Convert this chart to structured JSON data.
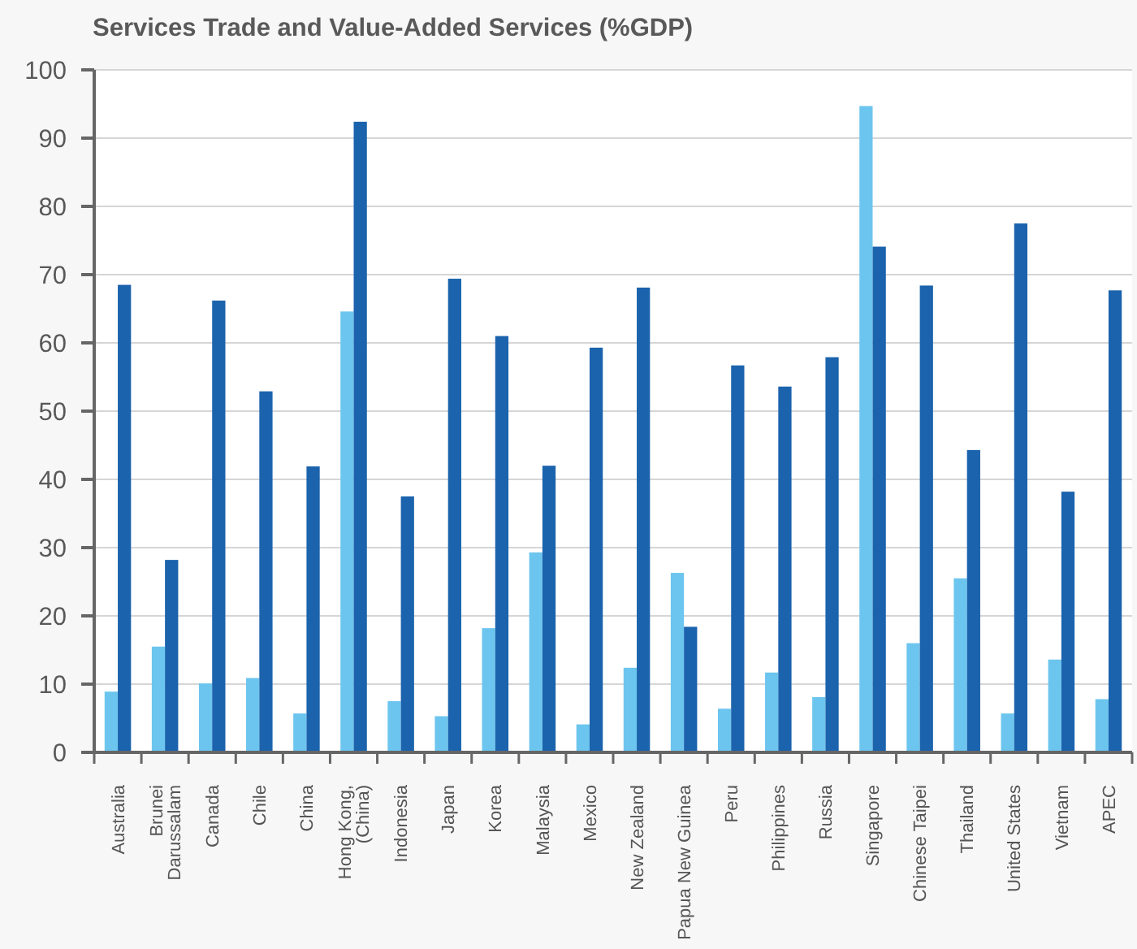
{
  "chart_data": {
    "type": "bar",
    "title": "Services Trade and Value-Added Services (%GDP)",
    "categories": [
      "Australia",
      "Brunei\nDarussalam",
      "Canada",
      "Chile",
      "China",
      "Hong Kong,\n(China)",
      "Indonesia",
      "Japan",
      "Korea",
      "Malaysia",
      "Mexico",
      "New Zealand",
      "Papua New Guinea",
      "Peru",
      "Philippines",
      "Russia",
      "Singapore",
      "Chinese Taipei",
      "Thailand",
      "United States",
      "Vietnam",
      "APEC"
    ],
    "series": [
      {
        "color": "#6cc5ee",
        "values": [
          8.9,
          15.5,
          10.1,
          10.9,
          5.7,
          64.6,
          7.5,
          5.3,
          18.2,
          29.3,
          4.1,
          12.4,
          26.3,
          6.4,
          11.7,
          8.1,
          94.7,
          16.0,
          25.5,
          5.7,
          13.6,
          7.8
        ]
      },
      {
        "color": "#1b63ad",
        "values": [
          68.5,
          28.2,
          66.2,
          52.9,
          41.9,
          92.4,
          37.5,
          69.4,
          61.0,
          42.0,
          59.3,
          68.1,
          18.4,
          56.7,
          53.6,
          57.9,
          74.1,
          68.4,
          44.3,
          77.5,
          38.2,
          67.7
        ]
      }
    ],
    "ylim": [
      0,
      100
    ],
    "yticks": [
      0,
      10,
      20,
      30,
      40,
      50,
      60,
      70,
      80,
      90,
      100
    ],
    "grid": "y"
  }
}
